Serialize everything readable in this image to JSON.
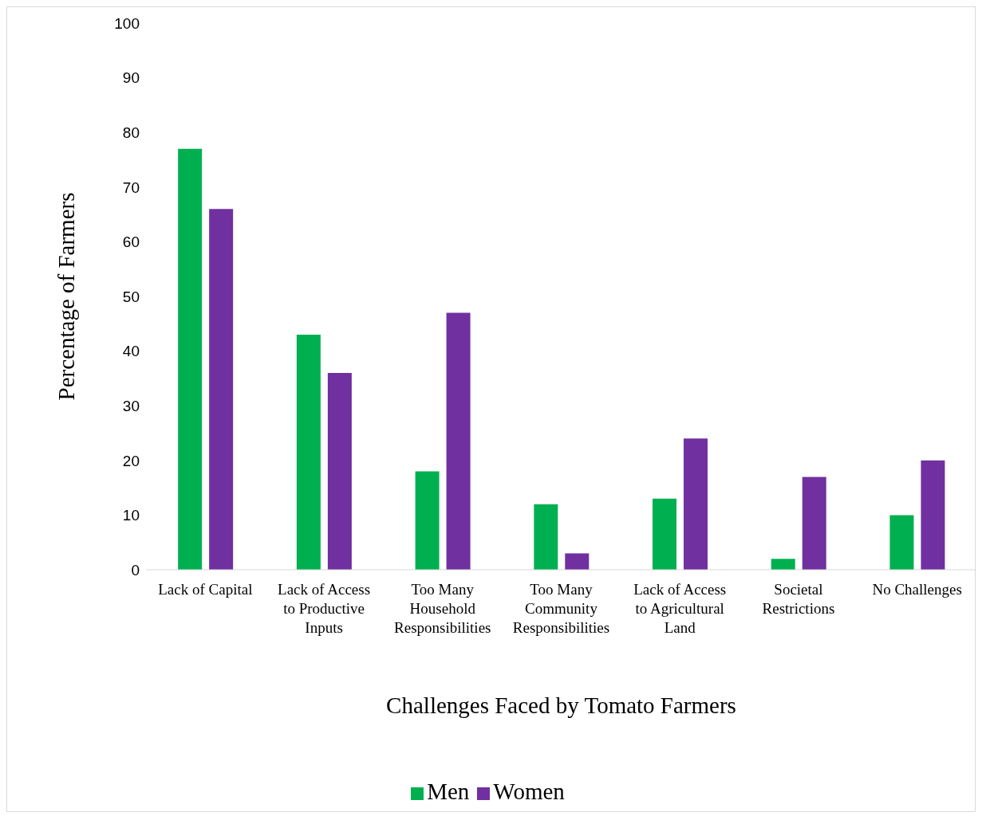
{
  "chart_data": {
    "type": "bar",
    "xlabel": "Challenges Faced by Tomato Farmers",
    "ylabel": "Percentage of Farmers",
    "categories": [
      "Lack of Capital",
      "Lack of Access to Productive Inputs",
      "Too Many Household Responsibilities",
      "Too Many Community Responsibilities",
      "Lack of Access to Agricultural Land",
      "Societal Restrictions",
      "No Challenges"
    ],
    "series": [
      {
        "name": "Men",
        "color": "#00b050",
        "values": [
          77,
          43,
          18,
          12,
          13,
          2,
          10
        ]
      },
      {
        "name": "Women",
        "color": "#7030a0",
        "values": [
          66,
          36,
          47,
          3,
          24,
          17,
          20
        ]
      }
    ],
    "ylim": [
      0,
      100
    ],
    "yticks": [
      0,
      10,
      20,
      30,
      40,
      50,
      60,
      70,
      80,
      90,
      100
    ],
    "grid": false,
    "legend": "bottom"
  }
}
